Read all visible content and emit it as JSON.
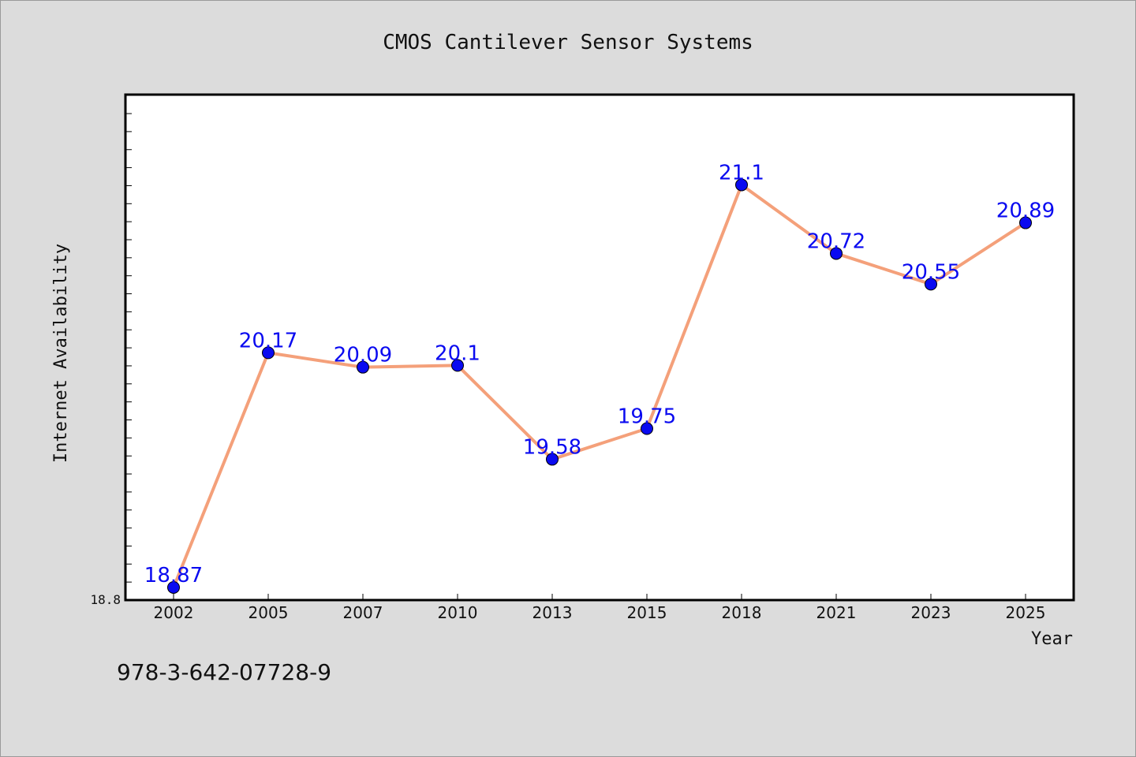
{
  "chart_data": {
    "type": "line",
    "title": "CMOS Cantilever Sensor Systems",
    "xlabel": "Year",
    "ylabel": "Internet Availability",
    "categories": [
      "2002",
      "2005",
      "2007",
      "2010",
      "2013",
      "2015",
      "2018",
      "2021",
      "2023",
      "2025"
    ],
    "series": [
      {
        "values": [
          18.87,
          20.17,
          20.09,
          20.1,
          19.58,
          19.75,
          21.1,
          20.72,
          20.55,
          20.89
        ],
        "labels": [
          "18.87",
          "20.17",
          "20.09",
          "20.1",
          "19.58",
          "19.75",
          "21.1",
          "20.72",
          "20.55",
          "20.89"
        ]
      }
    ],
    "ylim": [
      18.8,
      21.6
    ],
    "yticks": [
      "18.8"
    ],
    "grid": false,
    "line_color": "#f4a07a",
    "marker_color": "#0a0af0",
    "label_color": "#0a0af0"
  },
  "footnote": "978-3-642-07728-9"
}
